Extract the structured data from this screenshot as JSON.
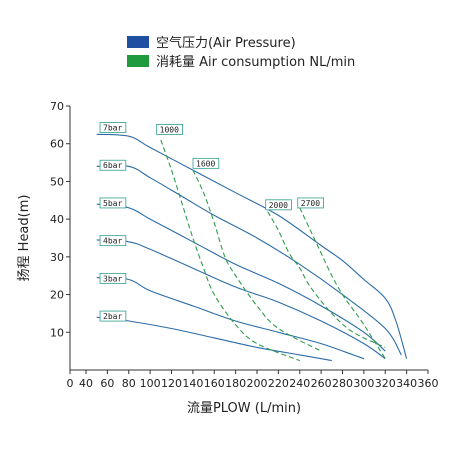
{
  "chart_data": {
    "type": "line",
    "xlabel": "流量PLOW (L/min)",
    "ylabel": "扬程 Head(m)",
    "xlim": [
      0,
      360
    ],
    "ylim": [
      0,
      70
    ],
    "xticks": [
      0,
      40,
      60,
      80,
      100,
      120,
      140,
      160,
      180,
      200,
      220,
      240,
      260,
      280,
      300,
      320,
      340,
      360
    ],
    "yticks": [
      10,
      20,
      30,
      40,
      50,
      60,
      70
    ],
    "grid": false,
    "legend_position": "top",
    "legend": [
      {
        "label": "空气压力(Air Pressure)",
        "color": "#1f4fa0"
      },
      {
        "label": "消耗量 Air consumption NL/min",
        "color": "#1f9a3c"
      }
    ],
    "series": [
      {
        "kind": "pressure",
        "name": "7bar",
        "color": "#2b6ca8",
        "x": [
          50,
          80,
          100,
          140,
          180,
          220,
          260,
          280,
          300,
          320,
          330,
          340
        ],
        "y": [
          62.5,
          62,
          59,
          53,
          47,
          41,
          33,
          29,
          24,
          19,
          13,
          3
        ]
      },
      {
        "kind": "pressure",
        "name": "6bar",
        "color": "#2b6ca8",
        "x": [
          50,
          80,
          100,
          130,
          160,
          200,
          240,
          280,
          320,
          335
        ],
        "y": [
          54,
          54,
          51,
          46,
          41,
          35,
          28,
          20,
          11,
          4
        ]
      },
      {
        "kind": "pressure",
        "name": "5bar",
        "color": "#2b6ca8",
        "x": [
          50,
          80,
          100,
          140,
          180,
          220,
          260,
          300,
          320
        ],
        "y": [
          44,
          43,
          40,
          34,
          28,
          23,
          17,
          10,
          5
        ]
      },
      {
        "kind": "pressure",
        "name": "4bar",
        "color": "#2b6ca8",
        "x": [
          50,
          80,
          100,
          140,
          180,
          220,
          260,
          300,
          320
        ],
        "y": [
          34.5,
          34,
          32,
          27,
          22,
          18,
          13,
          7,
          3
        ]
      },
      {
        "kind": "pressure",
        "name": "3bar",
        "color": "#2b6ca8",
        "x": [
          50,
          80,
          100,
          140,
          180,
          220,
          260,
          290,
          300
        ],
        "y": [
          24.5,
          24,
          21,
          17,
          13,
          10,
          7,
          4,
          3
        ]
      },
      {
        "kind": "pressure",
        "name": "2bar",
        "color": "#2b6ca8",
        "x": [
          50,
          80,
          120,
          160,
          200,
          240,
          270
        ],
        "y": [
          14,
          13,
          11,
          8.5,
          6,
          4,
          2.5
        ]
      },
      {
        "kind": "consumption",
        "name": "1000",
        "color": "#2e9e4c",
        "x": [
          110,
          120,
          130,
          140,
          150,
          160,
          180,
          200,
          240
        ],
        "y": [
          61,
          53,
          44,
          35,
          27,
          20,
          12,
          7,
          2.5
        ]
      },
      {
        "kind": "consumption",
        "name": "1600",
        "color": "#2e9e4c",
        "x": [
          140,
          150,
          160,
          170,
          180,
          200,
          220,
          260
        ],
        "y": [
          53,
          47,
          39,
          30,
          25,
          17,
          11,
          5
        ]
      },
      {
        "kind": "consumption",
        "name": "2000",
        "color": "#2e9e4c",
        "x": [
          210,
          220,
          230,
          240,
          250,
          270,
          290,
          320
        ],
        "y": [
          42,
          37,
          31,
          27,
          22,
          15,
          10,
          6
        ]
      },
      {
        "kind": "consumption",
        "name": "2700",
        "color": "#2e9e4c",
        "x": [
          240,
          250,
          260,
          270,
          280,
          290,
          300,
          320
        ],
        "y": [
          43,
          37,
          31,
          25,
          20,
          16,
          12,
          3
        ]
      }
    ],
    "labels": [
      {
        "text": "7bar",
        "x": 55,
        "y": 63.5
      },
      {
        "text": "6bar",
        "x": 55,
        "y": 53.5
      },
      {
        "text": "5bar",
        "x": 55,
        "y": 43.5
      },
      {
        "text": "4bar",
        "x": 55,
        "y": 33.5
      },
      {
        "text": "3bar",
        "x": 55,
        "y": 23.5
      },
      {
        "text": "2bar",
        "x": 55,
        "y": 13.5
      },
      {
        "text": "1000",
        "x": 108,
        "y": 63
      },
      {
        "text": "1600",
        "x": 142,
        "y": 54
      },
      {
        "text": "2000",
        "x": 210,
        "y": 43
      },
      {
        "text": "2700",
        "x": 240,
        "y": 43.5
      }
    ]
  }
}
